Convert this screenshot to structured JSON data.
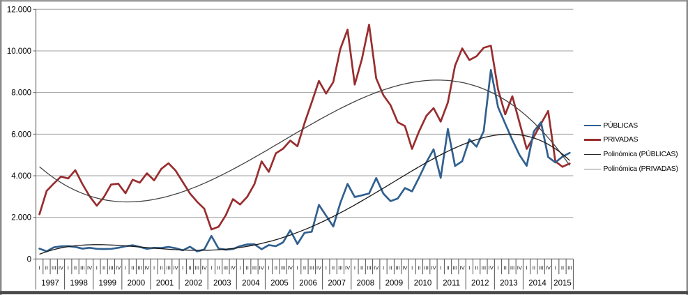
{
  "chart_data": {
    "type": "line",
    "title": "",
    "xlabel": "",
    "ylabel": "",
    "x_axis": {
      "quarter_labels": [
        "I",
        "II",
        "III",
        "IV"
      ],
      "years": [
        {
          "label": "1997",
          "quarters": 4
        },
        {
          "label": "1998",
          "quarters": 4
        },
        {
          "label": "1999",
          "quarters": 4
        },
        {
          "label": "2000",
          "quarters": 4
        },
        {
          "label": "2001",
          "quarters": 4
        },
        {
          "label": "2002",
          "quarters": 4
        },
        {
          "label": "2003",
          "quarters": 4
        },
        {
          "label": "2004",
          "quarters": 4
        },
        {
          "label": "2005",
          "quarters": 4
        },
        {
          "label": "2006",
          "quarters": 4
        },
        {
          "label": "2007",
          "quarters": 4
        },
        {
          "label": "2008",
          "quarters": 4
        },
        {
          "label": "2009",
          "quarters": 4
        },
        {
          "label": "2010",
          "quarters": 4
        },
        {
          "label": "2011",
          "quarters": 4
        },
        {
          "label": "2012",
          "quarters": 4
        },
        {
          "label": "2013",
          "quarters": 4
        },
        {
          "label": "2014",
          "quarters": 4
        },
        {
          "label": "2015",
          "quarters": 3
        }
      ]
    },
    "y_axis": {
      "min": 0,
      "max": 12000,
      "step": 2000,
      "tick_labels": [
        "0",
        "2.000",
        "4.000",
        "6.000",
        "8.000",
        "10.000",
        "12.000"
      ]
    },
    "grid": true,
    "legend_position": "right",
    "series": [
      {
        "name": "PRIVADAS",
        "color": "#982d2e",
        "line_width": 2.7,
        "values": [
          2150,
          3270,
          3630,
          3960,
          3870,
          4270,
          3600,
          3010,
          2560,
          2980,
          3580,
          3620,
          3160,
          3810,
          3670,
          4120,
          3780,
          4330,
          4600,
          4250,
          3700,
          3150,
          2750,
          2420,
          1420,
          1550,
          2100,
          2880,
          2620,
          2990,
          3600,
          4690,
          4190,
          5080,
          5300,
          5690,
          5420,
          6530,
          7530,
          8560,
          7950,
          8500,
          10100,
          11020,
          8380,
          9610,
          11260,
          8680,
          7870,
          7390,
          6570,
          6390,
          5290,
          6150,
          6880,
          7250,
          6600,
          7520,
          9290,
          10120,
          9560,
          9740,
          10150,
          10250,
          8150,
          6950,
          7820,
          6550,
          5290,
          5870,
          6500,
          7110,
          4690,
          4430,
          4590
        ]
      },
      {
        "name": "PÚBLICAS",
        "color": "#31608f",
        "line_width": 2.7,
        "values": [
          500,
          370,
          560,
          610,
          620,
          580,
          500,
          540,
          490,
          480,
          490,
          540,
          610,
          660,
          580,
          490,
          540,
          530,
          580,
          520,
          420,
          590,
          370,
          460,
          1110,
          500,
          450,
          480,
          620,
          700,
          710,
          470,
          670,
          620,
          800,
          1380,
          720,
          1260,
          1310,
          2600,
          2080,
          1560,
          2700,
          3610,
          2980,
          3060,
          3150,
          3890,
          3140,
          2780,
          2910,
          3410,
          3250,
          3930,
          4650,
          5270,
          3900,
          6250,
          4470,
          4700,
          5750,
          5400,
          6140,
          9080,
          7300,
          6500,
          5720,
          5000,
          4480,
          6130,
          6570,
          4900,
          4640,
          4920,
          5100
        ]
      }
    ],
    "trendlines": [
      {
        "name": "Polinómica (PRIVADAS)",
        "for_series": "PRIVADAS",
        "color": "#444444",
        "line_width": 1.3,
        "poly_coeffs": [
          -0.144694,
          14.728823,
          -296.716821,
          4433.153015
        ]
      },
      {
        "name": "Polinómica (PÚBLICAS)",
        "for_series": "PÚBLICAS",
        "color": "#1a1a1a",
        "line_width": 1.3,
        "poly_coeffs": [
          -0.0028712,
          0.3669026,
          -12.4298292,
          134.9723695,
          230.1293559
        ]
      }
    ],
    "legend": {
      "items": [
        {
          "label": "PÚBLICAS",
          "color": "#31608f",
          "line_width": 2.7
        },
        {
          "label": "PRIVADAS",
          "color": "#982d2e",
          "line_width": 2.7
        },
        {
          "label": "Polinómica (PÚBLICAS)",
          "color": "#262626",
          "line_width": 1.2
        },
        {
          "label": "Polinómica (PRIVADAS)",
          "color": "#8f8f8f",
          "line_width": 1.2
        }
      ]
    },
    "colors": {
      "background": "#ffffff",
      "gridline": "#9f9f9f",
      "axis": "#6e6e6e",
      "tick": "#666666",
      "separator": "#4f4f4f",
      "border_top": "#9a9a9a",
      "border_left": "#8a8a8a",
      "border_right": "#8a8a8a",
      "border_bottom": "#4a4a4a"
    }
  }
}
